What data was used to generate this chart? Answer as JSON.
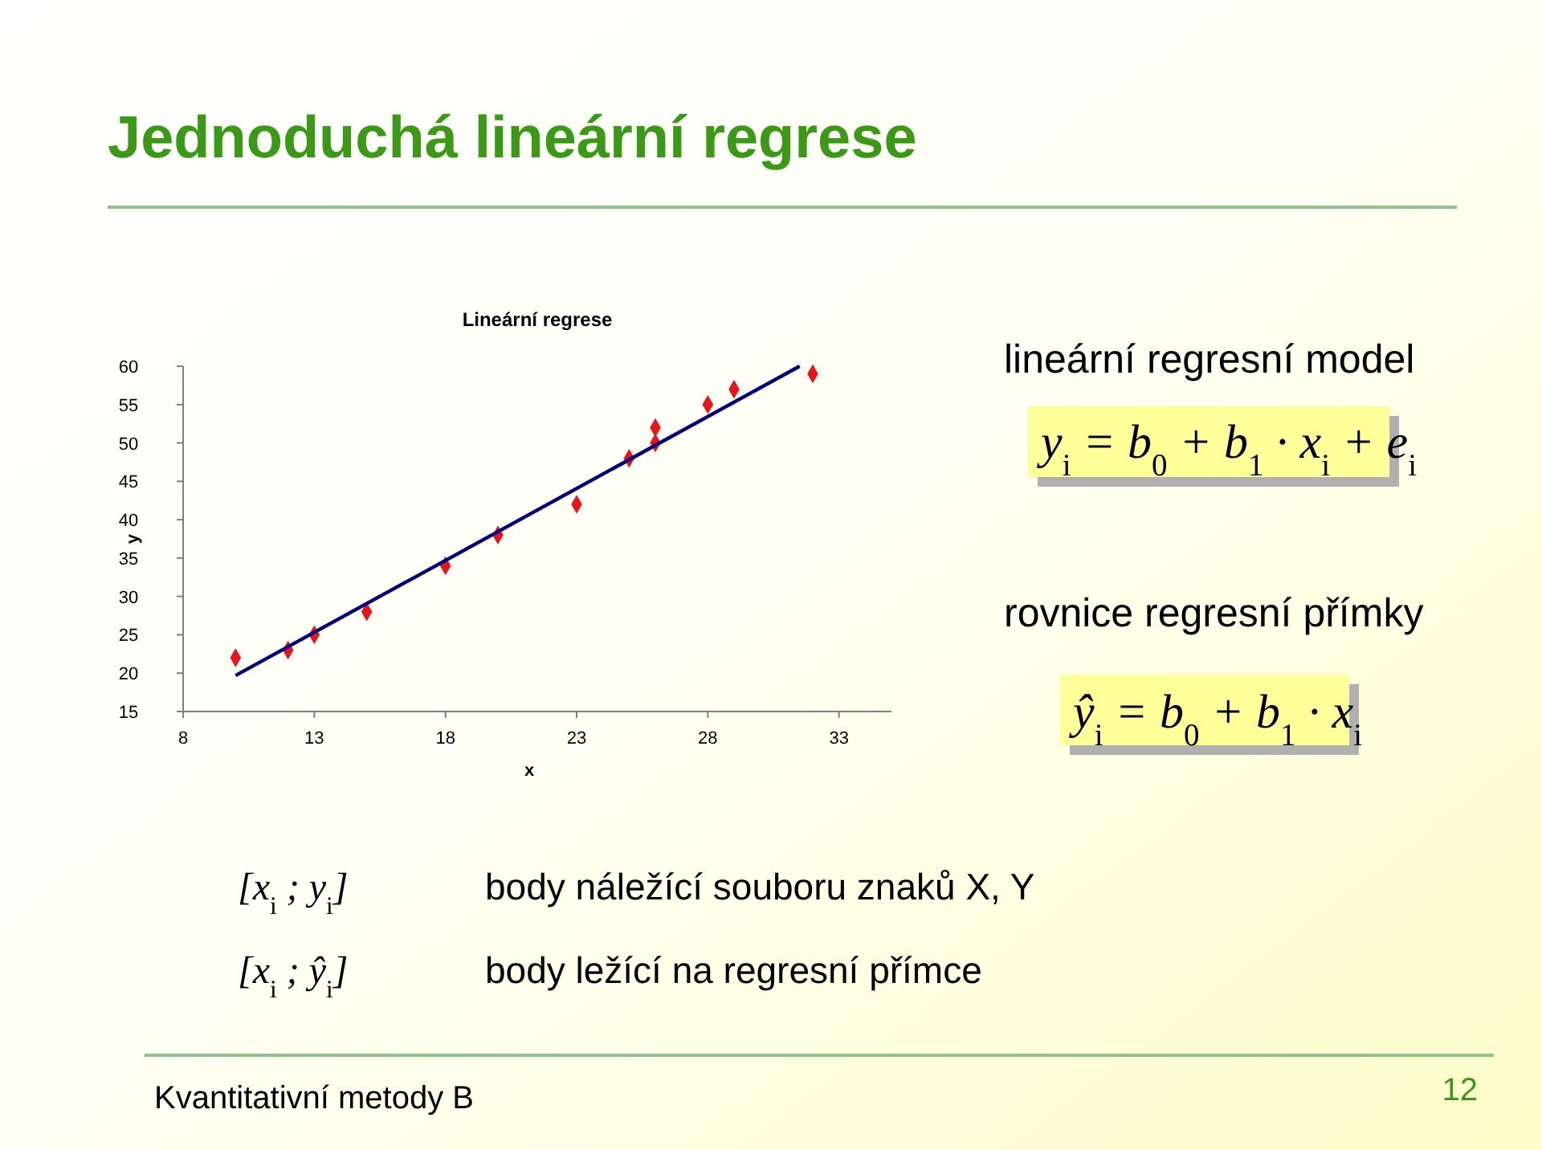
{
  "chart_data": {
    "type": "scatter",
    "title": "Lineární regrese",
    "xlabel": "x",
    "ylabel": "y",
    "xlim": [
      8,
      35
    ],
    "xticks": [
      8,
      13,
      18,
      23,
      28,
      33
    ],
    "ylim": [
      15,
      60
    ],
    "yticks": [
      15,
      20,
      25,
      30,
      35,
      40,
      45,
      50,
      55,
      60
    ],
    "grid": false,
    "marker": "diamond",
    "series": [
      {
        "color": "#e8141a",
        "x": [
          10,
          12,
          13,
          15,
          18,
          20,
          23,
          25,
          26,
          26,
          28,
          29,
          32
        ],
        "values": [
          22,
          23,
          25,
          28,
          34,
          38,
          42,
          48,
          50,
          52,
          55,
          57,
          59
        ]
      },
      {
        "type": "line",
        "color": "#000080",
        "line_style": "solid",
        "marker": "none",
        "x": [
          10,
          31.5
        ],
        "values": [
          19.7,
          60
        ]
      }
    ],
    "annotations": [
      "Jednoduchá lineární regrese",
      "lineární regresní model",
      "y$_{i}$ = b$_{0}$ + b$_{1}$ · x$_{i}$ + e$_{i}$",
      "rovnice regresní přímky",
      "ŷ$_{i}$ = b$_{0}$ + b$_{1}$ · x$_{i}$",
      "[x$_{i}$ ; y$_{i}$]",
      "body náležící souboru znaků X, Y",
      "[x$_{i}$ ; ŷ$_{i}$]",
      "body ležící na regresní přímce",
      "Kvantitativní metody B",
      "12"
    ]
  }
}
